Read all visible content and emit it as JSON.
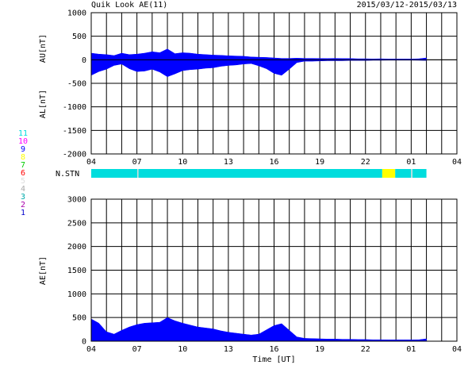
{
  "header": {
    "title": "Quik Look AE(11)",
    "date_range": "2015/03/12-2015/03/13"
  },
  "station_legend": [
    {
      "label": "11",
      "color": "#00dddd"
    },
    {
      "label": "10",
      "color": "#ff00ff"
    },
    {
      "label": "9",
      "color": "#0000ff"
    },
    {
      "label": "8",
      "color": "#ffff00"
    },
    {
      "label": "7",
      "color": "#00cc00"
    },
    {
      "label": "6",
      "color": "#ff0000"
    },
    {
      "label": "5",
      "color": "#dddddd"
    },
    {
      "label": "4",
      "color": "#aaaaaa"
    },
    {
      "label": "3",
      "color": "#00aaaa"
    },
    {
      "label": "2",
      "color": "#aa00aa"
    },
    {
      "label": "1",
      "color": "#0000cc"
    }
  ],
  "chart_data": [
    {
      "type": "area",
      "name": "AU/AL",
      "ylabel_top": "AU[nT]",
      "ylabel_bottom": "AL[nT]",
      "ylim": [
        -2000,
        1000
      ],
      "yticks": [
        "1000",
        "500",
        "0",
        "-500",
        "-1000",
        "-1500",
        "-2000"
      ],
      "xticks": [
        "04",
        "07",
        "10",
        "13",
        "16",
        "19",
        "22",
        "01",
        "04"
      ],
      "grid": true,
      "color": "#0000ff",
      "x_hours": [
        4.0,
        4.5,
        5.0,
        5.5,
        6.0,
        6.5,
        7.0,
        7.5,
        8.0,
        8.5,
        9.0,
        9.5,
        10.0,
        10.5,
        11.0,
        11.5,
        12.0,
        12.5,
        13.0,
        13.5,
        14.0,
        14.5,
        15.0,
        15.5,
        16.0,
        16.5,
        17.0,
        17.5,
        18.0,
        18.5,
        19.0,
        19.5,
        20.0,
        20.5,
        21.0,
        21.5,
        22.0,
        22.5,
        23.0,
        23.5,
        24.0,
        24.5,
        25.0,
        25.5,
        26.0
      ],
      "au": [
        140,
        120,
        110,
        90,
        140,
        110,
        120,
        140,
        170,
        150,
        230,
        130,
        150,
        140,
        120,
        110,
        100,
        95,
        85,
        80,
        75,
        60,
        55,
        50,
        40,
        30,
        30,
        35,
        30,
        30,
        28,
        25,
        30,
        25,
        25,
        20,
        20,
        18,
        20,
        15,
        15,
        15,
        15,
        20,
        40
      ],
      "al": [
        -330,
        -250,
        -200,
        -120,
        -90,
        -190,
        -250,
        -240,
        -200,
        -260,
        -360,
        -300,
        -230,
        -210,
        -200,
        -180,
        -170,
        -140,
        -120,
        -110,
        -90,
        -80,
        -130,
        -190,
        -290,
        -330,
        -200,
        -60,
        -30,
        -30,
        -25,
        -20,
        -20,
        -20,
        -15,
        -15,
        -15,
        -12,
        -12,
        -10,
        -10,
        -10,
        -10,
        -12,
        -15
      ]
    },
    {
      "type": "table",
      "name": "N.STN",
      "label": "N.STN",
      "segments": [
        {
          "from": 4.0,
          "to": 7.03,
          "station": "11"
        },
        {
          "from": 7.03,
          "to": 7.1,
          "station": "5"
        },
        {
          "from": 7.1,
          "to": 23.1,
          "station": "11"
        },
        {
          "from": 23.1,
          "to": 23.95,
          "station": "8"
        },
        {
          "from": 23.95,
          "to": 25.0,
          "station": "11"
        },
        {
          "from": 25.0,
          "to": 25.08,
          "station": "5"
        },
        {
          "from": 25.08,
          "to": 26.0,
          "station": "11"
        }
      ]
    },
    {
      "type": "area",
      "name": "AE",
      "ylabel": "AE[nT]",
      "xlabel": "Time [UT]",
      "ylim": [
        0,
        3000
      ],
      "yticks": [
        "3000",
        "2500",
        "2000",
        "1500",
        "1000",
        "500",
        "0"
      ],
      "xticks": [
        "04",
        "07",
        "10",
        "13",
        "16",
        "19",
        "22",
        "01",
        "04"
      ],
      "grid": true,
      "color": "#0000ff",
      "x_hours": [
        4.0,
        4.5,
        5.0,
        5.5,
        6.0,
        6.5,
        7.0,
        7.5,
        8.0,
        8.5,
        9.0,
        9.5,
        10.0,
        10.5,
        11.0,
        11.5,
        12.0,
        12.5,
        13.0,
        13.5,
        14.0,
        14.5,
        15.0,
        15.5,
        16.0,
        16.5,
        17.0,
        17.5,
        18.0,
        18.5,
        19.0,
        19.5,
        20.0,
        20.5,
        21.0,
        21.5,
        22.0,
        22.5,
        23.0,
        23.5,
        24.0,
        24.5,
        25.0,
        25.5,
        26.0
      ],
      "ae": [
        470,
        380,
        200,
        150,
        230,
        300,
        350,
        380,
        390,
        400,
        500,
        430,
        380,
        340,
        300,
        280,
        260,
        220,
        190,
        170,
        150,
        130,
        150,
        240,
        330,
        370,
        230,
        90,
        60,
        55,
        50,
        45,
        45,
        40,
        40,
        35,
        35,
        30,
        30,
        28,
        28,
        28,
        28,
        30,
        50
      ]
    }
  ]
}
